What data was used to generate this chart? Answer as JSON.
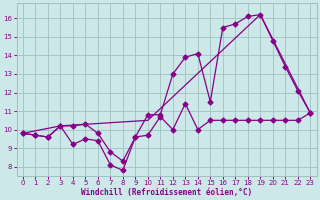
{
  "background_color": "#cce8e8",
  "grid_color": "#a0c0c0",
  "line_color": "#880088",
  "xlabel": "Windchill (Refroidissement éolien,°C)",
  "ylim": [
    7.5,
    16.8
  ],
  "xlim": [
    -0.5,
    23.5
  ],
  "yticks": [
    8,
    9,
    10,
    11,
    12,
    13,
    14,
    15,
    16
  ],
  "xticks": [
    0,
    1,
    2,
    3,
    4,
    5,
    6,
    7,
    8,
    9,
    10,
    11,
    12,
    13,
    14,
    15,
    16,
    17,
    18,
    19,
    20,
    21,
    22,
    23
  ],
  "series1_x": [
    0,
    1,
    2,
    3,
    4,
    5,
    6,
    7,
    8,
    9,
    10,
    11,
    12,
    13,
    14,
    15,
    16,
    17,
    18,
    19,
    20,
    21,
    22,
    23
  ],
  "series1_y": [
    9.8,
    9.7,
    9.6,
    10.2,
    9.2,
    9.5,
    9.4,
    8.1,
    7.8,
    9.6,
    9.7,
    10.7,
    10.0,
    11.4,
    10.0,
    10.5,
    10.5,
    10.5,
    10.5,
    10.5,
    10.5,
    10.5,
    10.5,
    10.9
  ],
  "series2_x": [
    0,
    1,
    2,
    3,
    4,
    5,
    6,
    7,
    8,
    9,
    10,
    11,
    12,
    13,
    14,
    15,
    16,
    17,
    18,
    19,
    20,
    21,
    22,
    23
  ],
  "series2_y": [
    9.8,
    9.7,
    9.6,
    10.2,
    10.2,
    10.3,
    9.8,
    8.8,
    8.3,
    9.6,
    10.8,
    10.8,
    13.0,
    13.9,
    14.1,
    11.5,
    15.5,
    15.7,
    16.1,
    16.2,
    14.8,
    13.4,
    12.1,
    10.9
  ],
  "series3_x": [
    0,
    3,
    10,
    19,
    23
  ],
  "series3_y": [
    9.8,
    10.2,
    10.5,
    16.2,
    10.9
  ]
}
